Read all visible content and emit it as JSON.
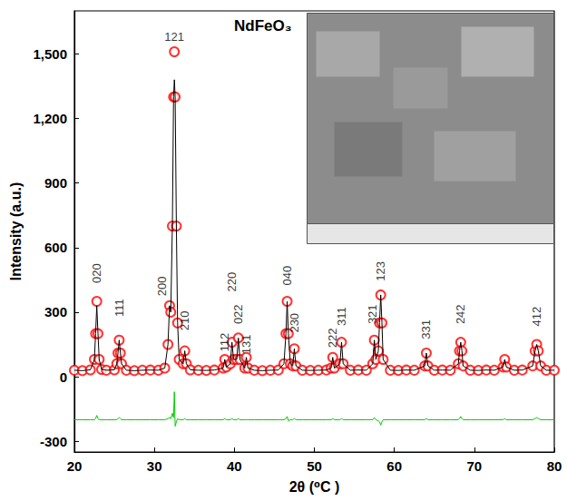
{
  "chart_data": {
    "type": "scatter",
    "annotation": "NdFeO₃",
    "x_label": "2θ (⁰C )",
    "y_label": "Intensity (a.u.)",
    "xlim": [
      20,
      80
    ],
    "xticks": [
      20,
      30,
      40,
      50,
      60,
      70,
      80
    ],
    "ylim": [
      -350,
      1700
    ],
    "yticks": [
      -300,
      0,
      300,
      600,
      900,
      1200,
      1500
    ],
    "grid": false,
    "x": [
      20,
      21,
      22,
      22.5,
      22.65,
      22.8,
      22.95,
      23.1,
      23.4,
      24,
      25,
      25.3,
      25.45,
      25.6,
      25.75,
      25.9,
      26.5,
      27.5,
      28.5,
      29.5,
      30.5,
      31.3,
      31.7,
      31.9,
      32.05,
      32.25,
      32.4,
      32.5,
      32.6,
      32.75,
      32.9,
      33.1,
      33.6,
      33.8,
      34.0,
      34.5,
      35.5,
      36.5,
      37.5,
      38.6,
      38.8,
      39.0,
      39.5,
      39.7,
      39.9,
      40.3,
      40.5,
      40.7,
      41.3,
      41.5,
      41.7,
      42.5,
      43.5,
      44.5,
      45.5,
      46.2,
      46.45,
      46.6,
      46.75,
      47.0,
      47.3,
      47.5,
      47.7,
      48.5,
      49.5,
      50.5,
      51.5,
      52.1,
      52.3,
      52.5,
      53.2,
      53.4,
      53.6,
      54.5,
      55.5,
      56.5,
      57.3,
      57.5,
      57.7,
      58.0,
      58.15,
      58.3,
      58.45,
      58.6,
      59.5,
      60.5,
      61.5,
      62.5,
      63.8,
      64.0,
      64.2,
      65,
      66,
      67,
      68.0,
      68.15,
      68.3,
      68.45,
      68.6,
      69.5,
      70.5,
      71.5,
      72.5,
      73.6,
      73.8,
      74.0,
      75,
      76,
      77.3,
      77.6,
      77.8,
      78.0,
      78.3,
      79,
      80
    ],
    "series": [
      {
        "type": "scatter",
        "marker": "circle",
        "color": "#ff0000",
        "values": [
          30,
          28,
          32,
          80,
          200,
          350,
          200,
          80,
          34,
          30,
          32,
          60,
          110,
          170,
          110,
          60,
          30,
          28,
          30,
          31,
          30,
          40,
          150,
          330,
          300,
          700,
          1300,
          1510,
          1300,
          700,
          250,
          80,
          60,
          120,
          60,
          32,
          30,
          29,
          31,
          40,
          80,
          45,
          60,
          160,
          80,
          80,
          180,
          80,
          40,
          90,
          40,
          30,
          28,
          30,
          31,
          60,
          200,
          350,
          200,
          60,
          50,
          130,
          50,
          30,
          29,
          30,
          31,
          40,
          90,
          40,
          60,
          160,
          60,
          30,
          31,
          30,
          60,
          170,
          80,
          120,
          250,
          380,
          250,
          80,
          30,
          29,
          31,
          30,
          50,
          110,
          50,
          30,
          31,
          30,
          60,
          120,
          160,
          120,
          50,
          30,
          29,
          31,
          30,
          45,
          80,
          45,
          30,
          31,
          50,
          120,
          150,
          120,
          50,
          30,
          30
        ]
      },
      {
        "type": "line",
        "line_style": "solid",
        "color": "#000000",
        "values": [
          30,
          28,
          32,
          80,
          200,
          330,
          200,
          80,
          34,
          30,
          32,
          60,
          110,
          170,
          110,
          60,
          30,
          28,
          30,
          31,
          30,
          40,
          150,
          330,
          300,
          700,
          1300,
          1380,
          1300,
          700,
          250,
          80,
          60,
          120,
          60,
          32,
          30,
          29,
          31,
          40,
          80,
          45,
          60,
          160,
          80,
          80,
          180,
          80,
          40,
          90,
          40,
          30,
          28,
          30,
          31,
          60,
          200,
          350,
          200,
          60,
          50,
          130,
          50,
          30,
          29,
          30,
          31,
          40,
          90,
          40,
          60,
          160,
          60,
          30,
          31,
          30,
          60,
          170,
          80,
          120,
          250,
          380,
          250,
          80,
          30,
          29,
          31,
          30,
          50,
          110,
          50,
          30,
          31,
          30,
          60,
          120,
          160,
          120,
          50,
          30,
          29,
          31,
          30,
          45,
          80,
          45,
          30,
          31,
          50,
          120,
          150,
          120,
          50,
          30,
          30
        ]
      },
      {
        "type": "line",
        "line_style": "solid",
        "color": "#00cc00",
        "values": [
          -200,
          -200,
          -200,
          -200,
          -195,
          -180,
          -195,
          -200,
          -200,
          -200,
          -200,
          -200,
          -195,
          -190,
          -195,
          -200,
          -200,
          -200,
          -200,
          -200,
          -200,
          -200,
          -195,
          -190,
          -195,
          -170,
          -190,
          -70,
          -230,
          -210,
          -195,
          -200,
          -200,
          -195,
          -200,
          -200,
          -200,
          -200,
          -200,
          -200,
          -195,
          -200,
          -200,
          -195,
          -200,
          -200,
          -195,
          -200,
          -200,
          -200,
          -200,
          -200,
          -200,
          -200,
          -200,
          -200,
          -195,
          -185,
          -205,
          -200,
          -200,
          -195,
          -200,
          -200,
          -200,
          -200,
          -200,
          -200,
          -195,
          -200,
          -200,
          -195,
          -200,
          -200,
          -200,
          -200,
          -200,
          -190,
          -200,
          -205,
          -210,
          -225,
          -210,
          -200,
          -200,
          -200,
          -200,
          -200,
          -200,
          -195,
          -200,
          -200,
          -200,
          -200,
          -200,
          -195,
          -185,
          -195,
          -200,
          -200,
          -200,
          -200,
          -200,
          -200,
          -195,
          -200,
          -200,
          -200,
          -200,
          -195,
          -190,
          -195,
          -200,
          -200,
          -200
        ]
      }
    ],
    "peak_labels": [
      {
        "text": "020",
        "x": 22.8,
        "y": 480
      },
      {
        "text": "111",
        "x": 25.6,
        "y": 320
      },
      {
        "text": "200",
        "x": 31.0,
        "y": 420
      },
      {
        "text": "121",
        "x": 32.5,
        "y": 1580
      },
      {
        "text": "210",
        "x": 33.8,
        "y": 260
      },
      {
        "text": "112",
        "x": 38.8,
        "y": 160
      },
      {
        "text": "220",
        "x": 39.7,
        "y": 440
      },
      {
        "text": "022",
        "x": 40.5,
        "y": 290
      },
      {
        "text": "131",
        "x": 41.5,
        "y": 150
      },
      {
        "text": "040",
        "x": 46.6,
        "y": 470
      },
      {
        "text": "230",
        "x": 47.5,
        "y": 250
      },
      {
        "text": "222",
        "x": 52.3,
        "y": 180
      },
      {
        "text": "311",
        "x": 53.4,
        "y": 280
      },
      {
        "text": "321",
        "x": 57.3,
        "y": 290
      },
      {
        "text": "123",
        "x": 58.3,
        "y": 490
      },
      {
        "text": "331",
        "x": 64.0,
        "y": 220
      },
      {
        "text": "242",
        "x": 68.3,
        "y": 290
      },
      {
        "text": "412",
        "x": 77.8,
        "y": 280
      }
    ]
  }
}
